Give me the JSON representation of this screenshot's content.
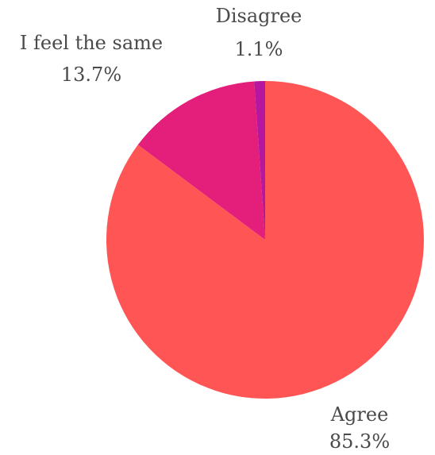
{
  "chart_data": {
    "type": "pie",
    "title": "",
    "start_angle_deg": 0,
    "direction": "clockwise",
    "slices": [
      {
        "label": "Agree",
        "value": 85.3,
        "value_label": "85.3%",
        "color": "#ff5555"
      },
      {
        "label": "I feel the same",
        "value": 13.7,
        "value_label": "13.7%",
        "color": "#e31e7b"
      },
      {
        "label": "Disagree",
        "value": 1.1,
        "value_label": "1.1%",
        "color": "#b5179e"
      }
    ]
  }
}
